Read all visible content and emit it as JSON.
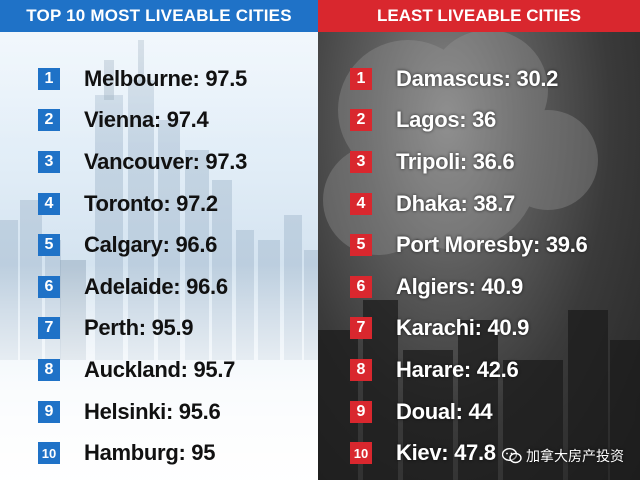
{
  "left": {
    "title": "TOP 10 MOST LIVEABLE CITIES",
    "accent": "#1f72c7",
    "items": [
      {
        "rank": "1",
        "text": "Melbourne: 97.5"
      },
      {
        "rank": "2",
        "text": "Vienna: 97.4"
      },
      {
        "rank": "3",
        "text": "Vancouver: 97.3"
      },
      {
        "rank": "4",
        "text": "Toronto: 97.2"
      },
      {
        "rank": "5",
        "text": "Calgary: 96.6"
      },
      {
        "rank": "6",
        "text": "Adelaide: 96.6"
      },
      {
        "rank": "7",
        "text": "Perth: 95.9"
      },
      {
        "rank": "8",
        "text": "Auckland: 95.7"
      },
      {
        "rank": "9",
        "text": "Helsinki: 95.6"
      },
      {
        "rank": "10",
        "text": "Hamburg: 95"
      }
    ]
  },
  "right": {
    "title": "LEAST LIVEABLE CITIES",
    "accent": "#d9272e",
    "items": [
      {
        "rank": "1",
        "text": "Damascus: 30.2"
      },
      {
        "rank": "2",
        "text": "Lagos: 36"
      },
      {
        "rank": "3",
        "text": "Tripoli: 36.6"
      },
      {
        "rank": "4",
        "text": "Dhaka: 38.7"
      },
      {
        "rank": "5",
        "text": "Port Moresby: 39.6"
      },
      {
        "rank": "6",
        "text": "Algiers: 40.9"
      },
      {
        "rank": "7",
        "text": "Karachi: 40.9"
      },
      {
        "rank": "8",
        "text": "Harare: 42.6"
      },
      {
        "rank": "9",
        "text": "Doual: 44"
      },
      {
        "rank": "10",
        "text": "Kiev: 47.8"
      }
    ]
  },
  "watermark": {
    "icon": "wechat-icon",
    "text": "加拿大房产投资"
  }
}
